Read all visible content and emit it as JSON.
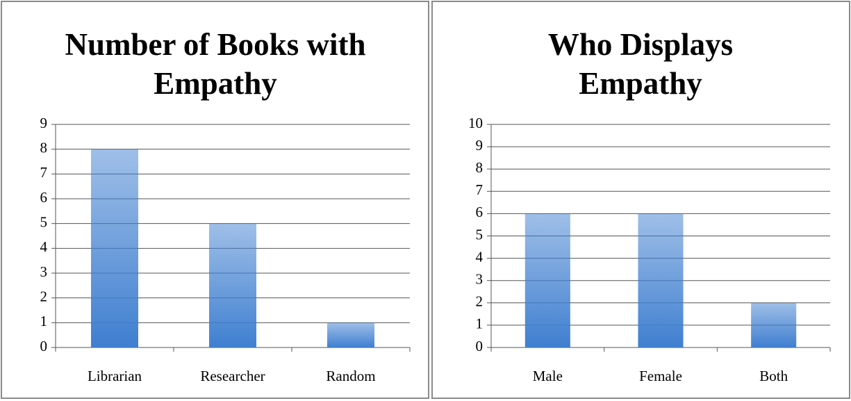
{
  "chart_data": [
    {
      "type": "bar",
      "title": "Number of Books with Empathy",
      "categories": [
        "Librarian",
        "Researcher",
        "Random"
      ],
      "values": [
        8,
        5,
        1
      ],
      "color": "#3f7fd0",
      "ylim": [
        0,
        9
      ],
      "yticks": [
        0,
        1,
        2,
        3,
        4,
        5,
        6,
        7,
        8,
        9
      ],
      "grid": true
    },
    {
      "type": "bar",
      "title": "Who Displays Empathy",
      "categories": [
        "Male",
        "Female",
        "Both"
      ],
      "values": [
        6,
        6,
        2
      ],
      "color": "#3f7fd0",
      "ylim": [
        0,
        10
      ],
      "yticks": [
        0,
        1,
        2,
        3,
        4,
        5,
        6,
        7,
        8,
        9,
        10
      ],
      "grid": true
    }
  ]
}
